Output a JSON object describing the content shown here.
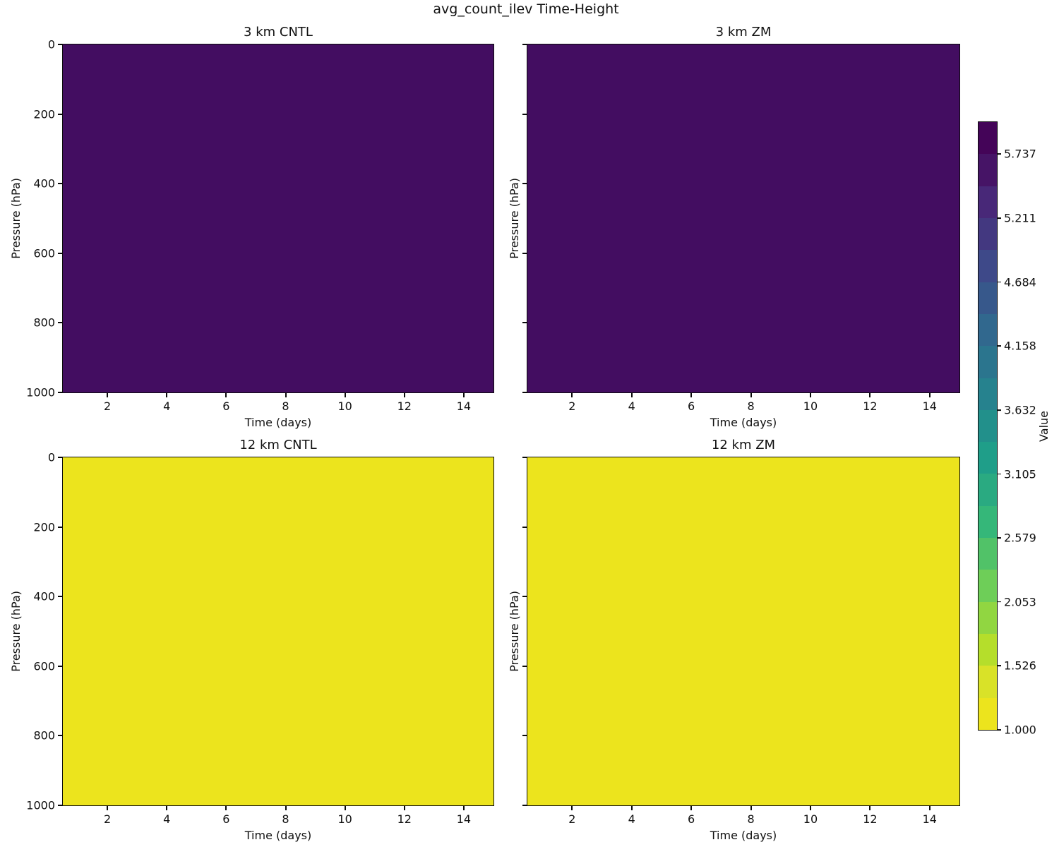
{
  "figure": {
    "title": "avg_count_ilev Time-Height",
    "background": "#ffffff"
  },
  "panels": [
    {
      "title": "3 km CNTL",
      "xlabel": "Time (days)",
      "ylabel": "Pressure (hPa)",
      "fill": "#430d61",
      "x_range": [
        0.5,
        15
      ],
      "x_ticks": [
        2,
        4,
        6,
        8,
        10,
        12,
        14
      ],
      "y_ticks": [
        "0",
        "200",
        "400",
        "600",
        "800",
        "1000"
      ],
      "show_y_tick_labels": true
    },
    {
      "title": "3 km ZM",
      "xlabel": "Time (days)",
      "ylabel": "Pressure (hPa)",
      "fill": "#430d61",
      "x_range": [
        0.5,
        15
      ],
      "x_ticks": [
        2,
        4,
        6,
        8,
        10,
        12,
        14
      ],
      "y_ticks": [
        "0",
        "200",
        "400",
        "600",
        "800",
        "1000"
      ],
      "show_y_tick_labels": false
    },
    {
      "title": "12 km CNTL",
      "xlabel": "Time (days)",
      "ylabel": "Pressure (hPa)",
      "fill": "#ece41d",
      "x_range": [
        0.5,
        15
      ],
      "x_ticks": [
        2,
        4,
        6,
        8,
        10,
        12,
        14
      ],
      "y_ticks": [
        "0",
        "200",
        "400",
        "600",
        "800",
        "1000"
      ],
      "show_y_tick_labels": true
    },
    {
      "title": "12 km ZM",
      "xlabel": "Time (days)",
      "ylabel": "Pressure (hPa)",
      "fill": "#ece41d",
      "x_range": [
        0.5,
        15
      ],
      "x_ticks": [
        2,
        4,
        6,
        8,
        10,
        12,
        14
      ],
      "y_ticks": [
        "0",
        "200",
        "400",
        "600",
        "800",
        "1000"
      ],
      "show_y_tick_labels": false
    }
  ],
  "colorbar": {
    "label": "Value",
    "vmin": 1.0,
    "vmax": 6.0,
    "tick_labels": [
      "5.737",
      "5.211",
      "4.684",
      "4.158",
      "3.632",
      "3.105",
      "2.579",
      "2.053",
      "1.526",
      "1.000"
    ],
    "tick_values": [
      5.737,
      5.211,
      4.684,
      4.158,
      3.632,
      3.105,
      2.579,
      2.053,
      1.526,
      1.0
    ],
    "segments_top_to_bottom": [
      "#440458",
      "#461466",
      "#482878",
      "#433880",
      "#3e4989",
      "#37588b",
      "#31688e",
      "#2b758e",
      "#26828e",
      "#22908b",
      "#1f9e89",
      "#2aaa81",
      "#35b779",
      "#51c268",
      "#6ece58",
      "#91d641",
      "#b5de2b",
      "#d9e228",
      "#ece41d"
    ]
  },
  "chart_data": [
    {
      "type": "heatmap",
      "title": "3 km CNTL",
      "xlabel": "Time (days)",
      "ylabel": "Pressure (hPa)",
      "x_range_days": [
        0.5,
        15
      ],
      "x_ticks": [
        2,
        4,
        6,
        8,
        10,
        12,
        14
      ],
      "y_range_hpa": [
        0,
        1000
      ],
      "y_ticks": [
        0,
        200,
        400,
        600,
        800,
        1000
      ],
      "y_axis_inverted": true,
      "field": "uniform",
      "uniform_value_range": [
        5.737,
        6.0
      ],
      "fill_color": "#430d61"
    },
    {
      "type": "heatmap",
      "title": "3 km ZM",
      "xlabel": "Time (days)",
      "ylabel": "Pressure (hPa)",
      "x_range_days": [
        0.5,
        15
      ],
      "x_ticks": [
        2,
        4,
        6,
        8,
        10,
        12,
        14
      ],
      "y_range_hpa": [
        0,
        1000
      ],
      "y_ticks": [
        0,
        200,
        400,
        600,
        800,
        1000
      ],
      "y_axis_inverted": true,
      "field": "uniform",
      "uniform_value_range": [
        5.737,
        6.0
      ],
      "fill_color": "#430d61"
    },
    {
      "type": "heatmap",
      "title": "12 km CNTL",
      "xlabel": "Time (days)",
      "ylabel": "Pressure (hPa)",
      "x_range_days": [
        0.5,
        15
      ],
      "x_ticks": [
        2,
        4,
        6,
        8,
        10,
        12,
        14
      ],
      "y_range_hpa": [
        0,
        1000
      ],
      "y_ticks": [
        0,
        200,
        400,
        600,
        800,
        1000
      ],
      "y_axis_inverted": true,
      "field": "uniform",
      "uniform_value_range": [
        1.0,
        1.263
      ],
      "fill_color": "#ece41d"
    },
    {
      "type": "heatmap",
      "title": "12 km ZM",
      "xlabel": "Time (days)",
      "ylabel": "Pressure (hPa)",
      "x_range_days": [
        0.5,
        15
      ],
      "x_ticks": [
        2,
        4,
        6,
        8,
        10,
        12,
        14
      ],
      "y_range_hpa": [
        0,
        1000
      ],
      "y_ticks": [
        0,
        200,
        400,
        600,
        800,
        1000
      ],
      "y_axis_inverted": true,
      "field": "uniform",
      "uniform_value_range": [
        1.0,
        1.263
      ],
      "fill_color": "#ece41d"
    }
  ]
}
